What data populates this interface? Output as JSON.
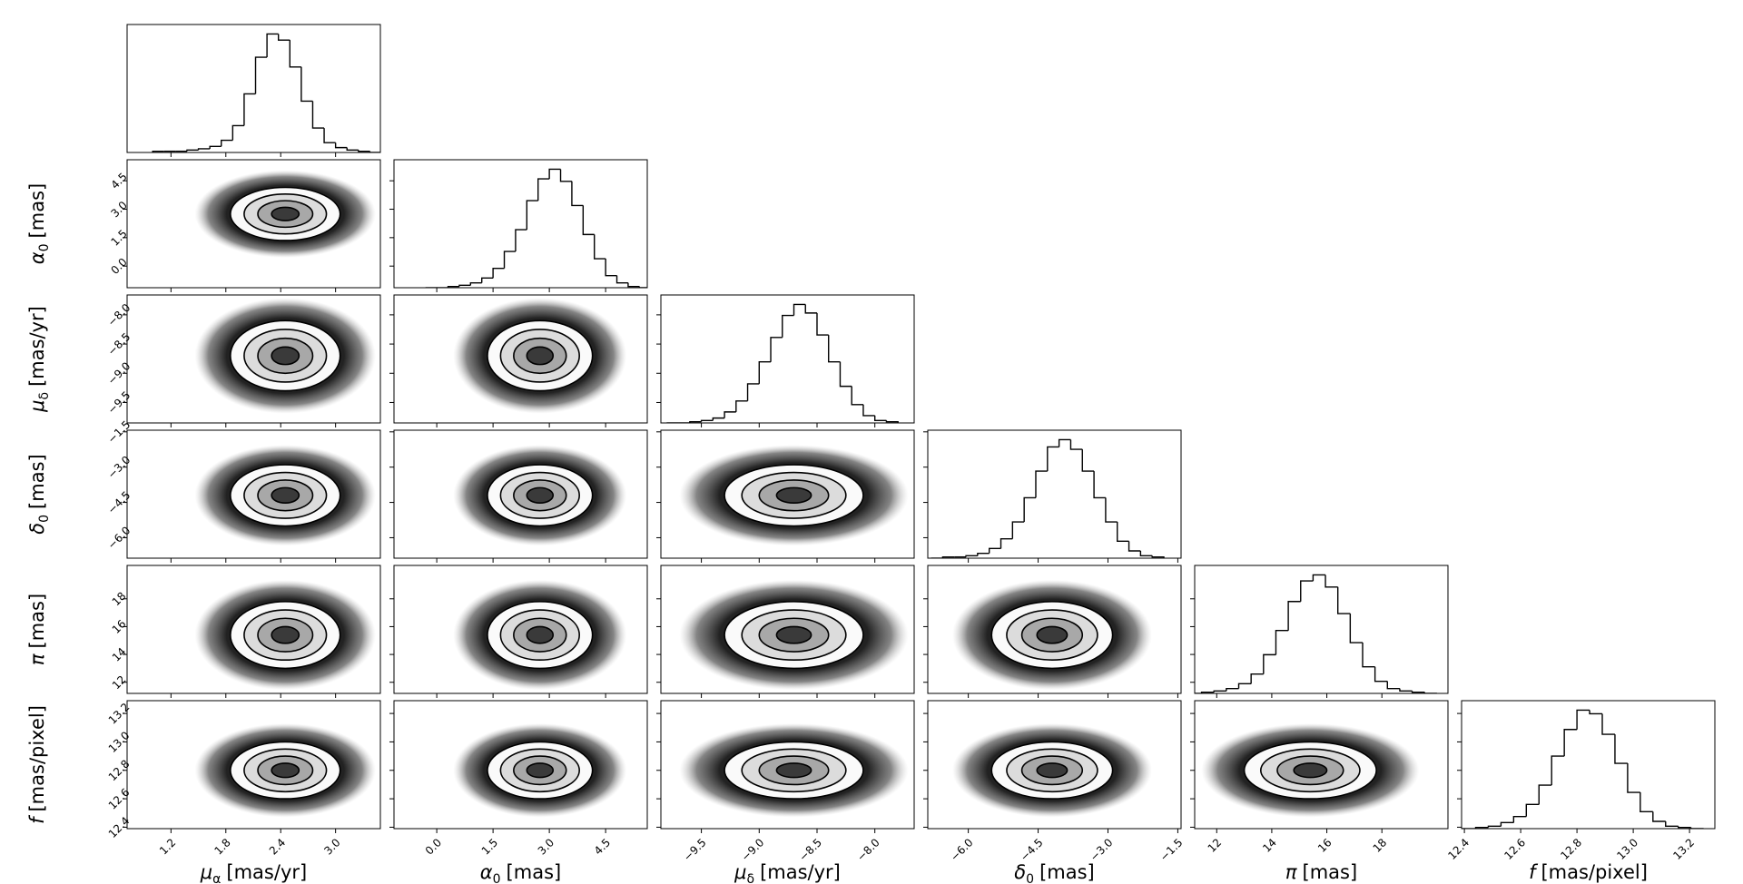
{
  "chart_data": {
    "type": "corner",
    "contour_levels": [
      2,
      1.5,
      1,
      0.5
    ],
    "cloud_extent": 3.3,
    "params": [
      {
        "symbol": "μ",
        "sub": "α",
        "unit": "[mas/yr]",
        "lim": [
          0.72,
          3.49
        ],
        "ticks": [
          1.2,
          1.8,
          2.4,
          {
            "value": 3,
            "label": "3.0"
          }
        ],
        "center": 2.45,
        "sigma": 0.3,
        "bins": [
          1.0,
          1.125,
          1.25,
          1.375,
          1.5,
          1.625,
          1.75,
          1.875,
          2.0,
          2.125,
          2.25,
          2.375,
          2.5,
          2.625,
          2.75,
          2.875,
          3.0,
          3.125,
          3.25,
          3.375,
          3.5
        ],
        "counts": [
          1,
          1,
          1,
          2,
          3,
          5,
          10,
          22,
          48,
          78,
          97,
          92,
          70,
          42,
          20,
          8,
          4,
          2,
          1,
          0
        ]
      },
      {
        "symbol": "α",
        "sub": "0",
        "unit": "[mas]",
        "lim": [
          -1.14,
          5.61
        ],
        "ticks": [
          {
            "value": 0,
            "label": "0.0"
          },
          1.5,
          {
            "value": 3,
            "label": "3.0"
          },
          4.5
        ],
        "center": 2.75,
        "sigma": 0.7,
        "bins": [
          -0.3,
          0,
          0.3,
          0.6,
          0.9,
          1.2,
          1.5,
          1.8,
          2.1,
          2.4,
          2.7,
          3.0,
          3.3,
          3.6,
          3.9,
          4.2,
          4.5,
          4.8,
          5.1,
          5.4,
          5.7
        ],
        "counts": [
          0,
          0,
          1,
          2,
          4,
          8,
          16,
          30,
          48,
          72,
          90,
          98,
          88,
          68,
          44,
          24,
          10,
          4,
          1,
          0
        ]
      },
      {
        "symbol": "μ",
        "sub": "δ",
        "unit": "[mas/yr]",
        "lim": [
          -9.85,
          -7.66
        ],
        "ticks": [
          {
            "value": -9.5,
            "label": "−9.5"
          },
          {
            "value": -9,
            "label": "−9.0"
          },
          {
            "value": -8.5,
            "label": "−8.5"
          },
          {
            "value": -8,
            "label": "−8.0"
          }
        ],
        "center": -8.7,
        "sigma": 0.3,
        "bins": [
          -9.8,
          -9.7,
          -9.6,
          -9.5,
          -9.4,
          -9.3,
          -9.2,
          -9.1,
          -9.0,
          -8.9,
          -8.8,
          -8.7,
          -8.6,
          -8.5,
          -8.4,
          -8.3,
          -8.2,
          -8.1,
          -8.0,
          -7.9,
          -7.8
        ],
        "counts": [
          0,
          0,
          1,
          2,
          4,
          9,
          18,
          32,
          50,
          70,
          88,
          97,
          90,
          72,
          50,
          30,
          15,
          6,
          2,
          1
        ]
      },
      {
        "symbol": "δ",
        "sub": "0",
        "unit": "[mas]",
        "lim": [
          -6.87,
          -1.43
        ],
        "ticks": [
          {
            "value": -6,
            "label": "−6.0"
          },
          {
            "value": -4.5,
            "label": "−4.5"
          },
          {
            "value": -3,
            "label": "−3.0"
          },
          {
            "value": -1.5,
            "label": "−1.5"
          }
        ],
        "center": -4.2,
        "sigma": 0.65,
        "bins": [
          -6.8,
          -6.55,
          -6.3,
          -6.05,
          -5.8,
          -5.55,
          -5.3,
          -5.05,
          -4.8,
          -4.55,
          -4.3,
          -4.05,
          -3.8,
          -3.55,
          -3.3,
          -3.05,
          -2.8,
          -2.55,
          -2.3,
          -2.05,
          -1.8
        ],
        "counts": [
          0,
          1,
          1,
          2,
          4,
          8,
          16,
          30,
          50,
          72,
          92,
          98,
          90,
          72,
          50,
          30,
          14,
          6,
          2,
          1
        ]
      },
      {
        "symbol": "π",
        "sub": "",
        "unit": "[mas]",
        "lim": [
          11.2,
          20.4
        ],
        "ticks": [
          12,
          14,
          16,
          18
        ],
        "center": 15.4,
        "sigma": 1.2,
        "bins": [
          11.0,
          11.45,
          11.9,
          12.35,
          12.8,
          13.25,
          13.7,
          14.15,
          14.6,
          15.05,
          15.5,
          15.95,
          16.4,
          16.85,
          17.3,
          17.75,
          18.2,
          18.65,
          19.1,
          19.55,
          20.0
        ],
        "counts": [
          0,
          1,
          2,
          4,
          8,
          16,
          32,
          52,
          76,
          93,
          98,
          88,
          66,
          42,
          22,
          10,
          4,
          2,
          1,
          0
        ]
      },
      {
        "symbol": "f",
        "sub": "",
        "unit": "[mas/pixel]",
        "lim": [
          12.39,
          13.29
        ],
        "ticks": [
          12.4,
          12.6,
          12.8,
          {
            "value": 13,
            "label": "13.0"
          },
          13.2
        ],
        "center": 12.8,
        "sigma": 0.1,
        "bins": [
          12.35,
          12.395,
          12.44,
          12.485,
          12.53,
          12.575,
          12.62,
          12.665,
          12.71,
          12.755,
          12.8,
          12.845,
          12.89,
          12.935,
          12.98,
          13.025,
          13.07,
          13.115,
          13.16,
          13.205,
          13.25
        ],
        "counts": [
          0,
          0,
          1,
          2,
          5,
          10,
          20,
          36,
          60,
          82,
          98,
          95,
          78,
          54,
          30,
          14,
          6,
          2,
          1,
          0
        ]
      }
    ]
  }
}
